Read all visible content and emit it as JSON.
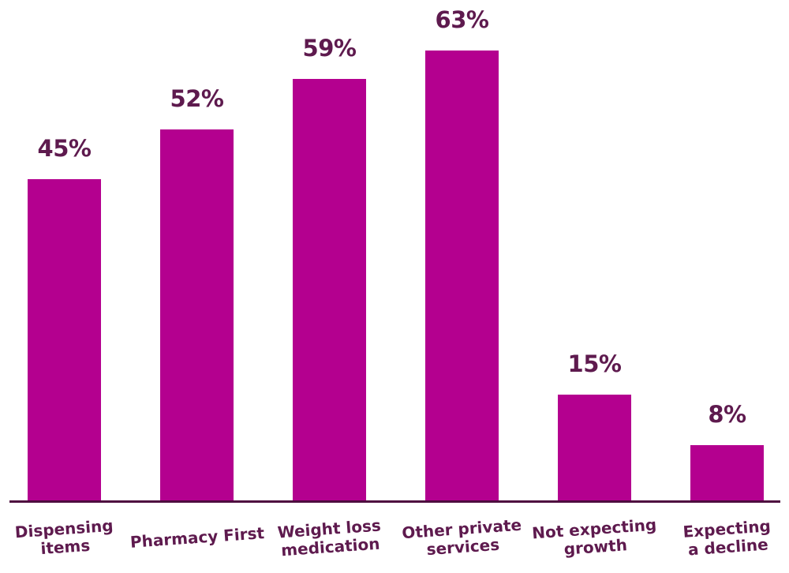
{
  "chart_data": {
    "type": "bar",
    "title": "",
    "xlabel": "",
    "ylabel": "",
    "categories": [
      "Dispensing items",
      "Pharmacy First",
      "Weight loss medication",
      "Other private services",
      "Not expecting growth",
      "Expecting a decline"
    ],
    "category_label_lines": [
      [
        "Dispensing",
        "items"
      ],
      [
        "Pharmacy First"
      ],
      [
        "Weight loss",
        "medication"
      ],
      [
        "Other private",
        "services"
      ],
      [
        "Not expecting",
        "growth"
      ],
      [
        "Expecting",
        "a decline"
      ]
    ],
    "values": [
      45,
      52,
      59,
      63,
      15,
      8
    ],
    "value_labels": [
      "45%",
      "52%",
      "59%",
      "63%",
      "15%",
      "8%"
    ],
    "ylim": [
      0,
      70
    ],
    "grid": false,
    "legend": "none",
    "colors": {
      "bar": "#B4008F",
      "text": "#5E1A4E",
      "axis_line": "#4E0D3F",
      "background": "#FFFFFF"
    }
  }
}
